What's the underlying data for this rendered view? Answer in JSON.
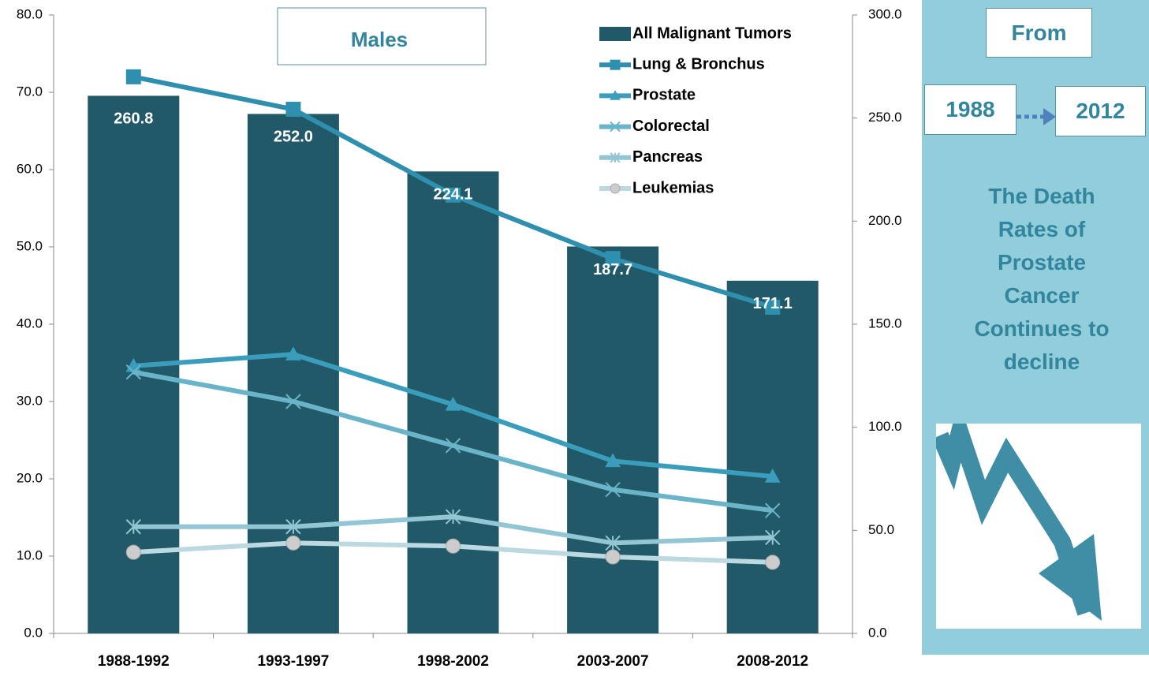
{
  "chart_data": {
    "type": "line",
    "annotation": "Males",
    "categories": [
      "1988-1992",
      "1993-1997",
      "1998-2002",
      "2003-2007",
      "2008-2012"
    ],
    "bars": {
      "name": "All Malignant Tumors",
      "color": "#215968",
      "axis": "y2",
      "values": [
        260.8,
        252.0,
        224.1,
        187.7,
        171.1
      ],
      "value_labels": [
        "260.8",
        "252.0",
        "224.1",
        "187.7",
        "171.1"
      ]
    },
    "series": [
      {
        "name": "Lung & Bronchus",
        "color": "#2e8fae",
        "marker": "square",
        "values": [
          72.0,
          67.8,
          56.7,
          48.5,
          42.2
        ]
      },
      {
        "name": "Prostate",
        "color": "#3a9dbb",
        "marker": "triangle",
        "values": [
          34.6,
          36.1,
          29.6,
          22.3,
          20.3
        ]
      },
      {
        "name": "Colorectal",
        "color": "#6ab4c9",
        "marker": "x",
        "values": [
          33.8,
          30.0,
          24.3,
          18.6,
          15.9
        ]
      },
      {
        "name": "Pancreas",
        "color": "#93c6d4",
        "marker": "star",
        "values": [
          13.8,
          13.8,
          15.1,
          11.7,
          12.4
        ]
      },
      {
        "name": "Leukemias",
        "color": "#bcd9e2",
        "marker": "circle",
        "values": [
          10.5,
          11.7,
          11.3,
          9.9,
          9.2
        ]
      }
    ],
    "ylim": [
      0,
      80
    ],
    "yticks": [
      {
        "value": 0,
        "label": "0.0"
      },
      {
        "value": 10,
        "label": "10.0"
      },
      {
        "value": 20,
        "label": "20.0"
      },
      {
        "value": 30,
        "label": "30.0"
      },
      {
        "value": 40,
        "label": "40.0"
      },
      {
        "value": 50,
        "label": "50.0"
      },
      {
        "value": 60,
        "label": "60.0"
      },
      {
        "value": 70,
        "label": "70.0"
      },
      {
        "value": 80,
        "label": "80.0"
      }
    ],
    "y2lim": [
      0,
      300
    ],
    "y2ticks": [
      {
        "value": 0,
        "label": "0.0"
      },
      {
        "value": 50,
        "label": "50.0"
      },
      {
        "value": 100,
        "label": "100.0"
      },
      {
        "value": 150,
        "label": "150.0"
      },
      {
        "value": 200,
        "label": "200.0"
      },
      {
        "value": 250,
        "label": "250.0"
      },
      {
        "value": 300,
        "label": "300.0"
      }
    ],
    "grid": false
  },
  "sidebar": {
    "heading": "From",
    "start": "1988",
    "end": "2012",
    "message": "The Death Rates of Prostate Cancer Continues to decline"
  }
}
